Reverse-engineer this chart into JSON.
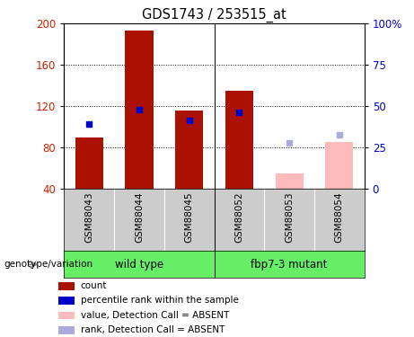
{
  "title": "GDS1743 / 253515_at",
  "samples": [
    "GSM88043",
    "GSM88044",
    "GSM88045",
    "GSM88052",
    "GSM88053",
    "GSM88054"
  ],
  "bar_values": [
    90,
    193,
    116,
    135,
    null,
    null
  ],
  "bar_color": "#aa1100",
  "absent_bar_values": [
    null,
    null,
    null,
    null,
    55,
    85
  ],
  "absent_bar_color": "#ffbbbb",
  "rank_values": [
    103,
    117,
    106,
    114,
    null,
    null
  ],
  "rank_color": "#0000cc",
  "absent_rank_values": [
    null,
    null,
    null,
    null,
    84,
    92
  ],
  "absent_rank_color": "#aaaadd",
  "ylim": [
    40,
    200
  ],
  "yticks_left": [
    40,
    80,
    120,
    160,
    200
  ],
  "yticks_right_labels": [
    "0",
    "25",
    "50",
    "75",
    "100%"
  ],
  "yticks_right_vals": [
    0,
    25,
    50,
    75,
    100
  ],
  "right_ylim": [
    0,
    100
  ],
  "bar_width": 0.35,
  "group1_name": "wild type",
  "group2_name": "fbp7-3 mutant",
  "group_color": "#66ee66",
  "tick_bg_color": "#cccccc",
  "group_label": "genotype/variation",
  "legend_items": [
    {
      "label": "count",
      "color": "#aa1100"
    },
    {
      "label": "percentile rank within the sample",
      "color": "#0000cc"
    },
    {
      "label": "value, Detection Call = ABSENT",
      "color": "#ffbbbb"
    },
    {
      "label": "rank, Detection Call = ABSENT",
      "color": "#aaaadd"
    }
  ]
}
